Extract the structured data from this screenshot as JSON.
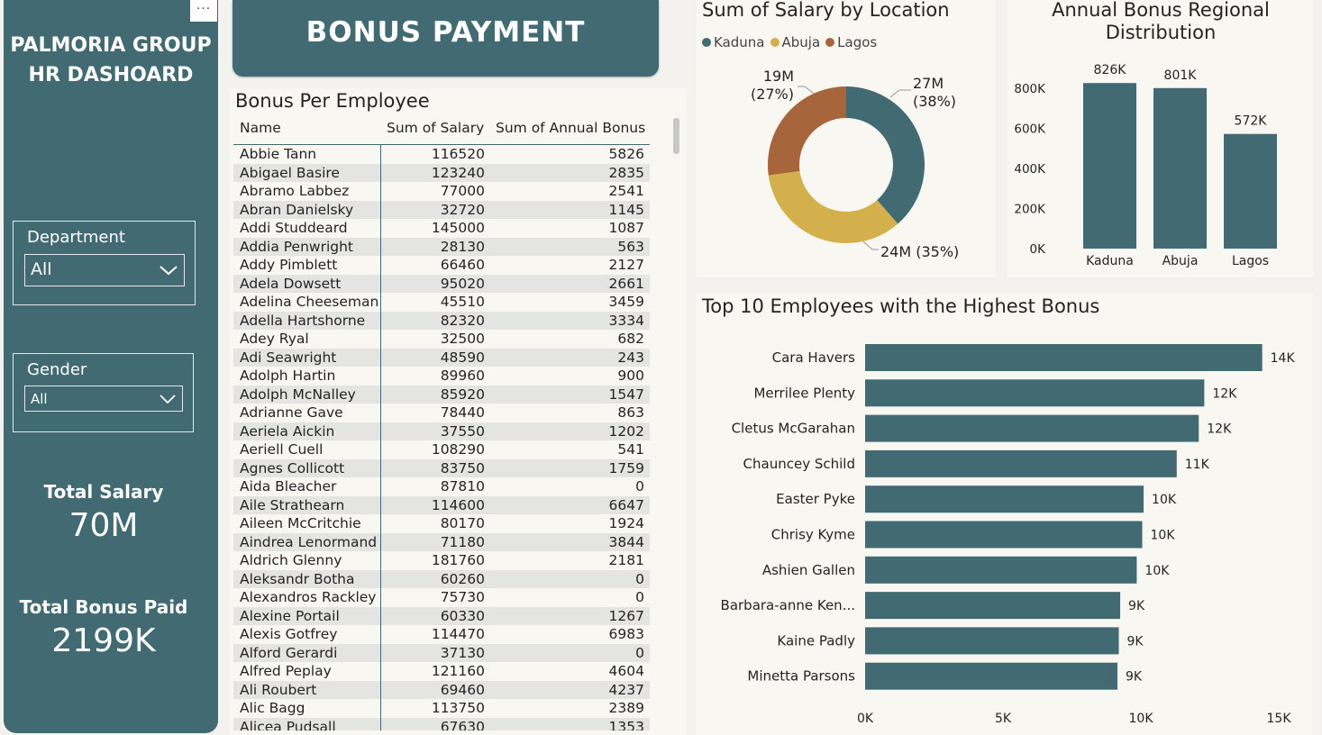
{
  "sidebar": {
    "brand_line1": "PALMORIA GROUP",
    "brand_line2": "HR DASHOARD",
    "department": {
      "label": "Department",
      "selected": "All"
    },
    "gender": {
      "label": "Gender",
      "selected": "All"
    },
    "total_salary": {
      "label": "Total Salary",
      "value": "70M"
    },
    "total_bonus": {
      "label": "Total Bonus Paid",
      "value": "2199K"
    },
    "more_options": "···"
  },
  "banner": {
    "title": "BONUS PAYMENT"
  },
  "table": {
    "title": "Bonus Per Employee",
    "columns": [
      "Name",
      "Sum of Salary",
      "Sum of Annual Bonus"
    ],
    "rows": [
      [
        "Abbie Tann",
        "116520",
        "5826"
      ],
      [
        "Abigael Basire",
        "123240",
        "2835"
      ],
      [
        "Abramo Labbez",
        "77000",
        "2541"
      ],
      [
        "Abran Danielsky",
        "32720",
        "1145"
      ],
      [
        "Addi Studdeard",
        "145000",
        "1087"
      ],
      [
        "Addia Penwright",
        "28130",
        "563"
      ],
      [
        "Addy Pimblett",
        "66460",
        "2127"
      ],
      [
        "Adela Dowsett",
        "95020",
        "2661"
      ],
      [
        "Adelina Cheeseman",
        "45510",
        "3459"
      ],
      [
        "Adella Hartshorne",
        "82320",
        "3334"
      ],
      [
        "Adey Ryal",
        "32500",
        "682"
      ],
      [
        "Adi Seawright",
        "48590",
        "243"
      ],
      [
        "Adolph Hartin",
        "89960",
        "900"
      ],
      [
        "Adolph McNalley",
        "85920",
        "1547"
      ],
      [
        "Adrianne Gave",
        "78440",
        "863"
      ],
      [
        "Aeriela Aickin",
        "37550",
        "1202"
      ],
      [
        "Aeriell Cuell",
        "108290",
        "541"
      ],
      [
        "Agnes Collicott",
        "83750",
        "1759"
      ],
      [
        "Aida Bleacher",
        "87810",
        "0"
      ],
      [
        "Aile Strathearn",
        "114600",
        "6647"
      ],
      [
        "Aileen McCritchie",
        "80170",
        "1924"
      ],
      [
        "Aindrea Lenormand",
        "71180",
        "3844"
      ],
      [
        "Aldrich Glenny",
        "181760",
        "2181"
      ],
      [
        "Aleksandr Botha",
        "60260",
        "0"
      ],
      [
        "Alexandros Rackley",
        "75730",
        "0"
      ],
      [
        "Alexine Portail",
        "60330",
        "1267"
      ],
      [
        "Alexis Gotfrey",
        "114470",
        "6983"
      ],
      [
        "Alford Gerardi",
        "37130",
        "0"
      ],
      [
        "Alfred Peplay",
        "121160",
        "4604"
      ],
      [
        "Ali Roubert",
        "69460",
        "4237"
      ],
      [
        "Alic Bagg",
        "113750",
        "2389"
      ],
      [
        "Alicea Pudsall",
        "67630",
        "1353"
      ]
    ]
  },
  "chart_data": [
    {
      "type": "pie",
      "title": "Sum of Salary by Location",
      "legend_position": "top-left",
      "slices": [
        {
          "name": "Kaduna",
          "value": 27,
          "label": "27M",
          "pct_label": "(38%)",
          "color": "#426a73"
        },
        {
          "name": "Abuja",
          "value": 24,
          "label": "24M (35%)",
          "color": "#d4b04c"
        },
        {
          "name": "Lagos",
          "value": 19,
          "label": "19M",
          "pct_label": "(27%)",
          "color": "#a6653a"
        }
      ]
    },
    {
      "type": "bar",
      "title_line1": "Annual Bonus Regional",
      "title_line2": "Distribution",
      "categories": [
        "Kaduna",
        "Abuja",
        "Lagos"
      ],
      "values": [
        826,
        801,
        572
      ],
      "data_labels": [
        "826K",
        "801K",
        "572K"
      ],
      "y_ticks": [
        0,
        200,
        400,
        600,
        800
      ],
      "y_tick_labels": [
        "0K",
        "200K",
        "400K",
        "600K",
        "800K"
      ],
      "ylim": [
        0,
        900
      ],
      "color": "#426a73"
    },
    {
      "type": "bar",
      "orientation": "horizontal",
      "title": "Top 10 Employees with the Highest Bonus",
      "categories": [
        "Cara Havers",
        "Merrilee Plenty",
        "Cletus McGarahan",
        "Chauncey Schild",
        "Easter Pyke",
        "Chrisy Kyme",
        "Ashien Gallen",
        "Barbara-anne Ken...",
        "Kaine Padly",
        "Minetta Parsons"
      ],
      "values": [
        14400,
        12300,
        12100,
        11300,
        10100,
        10050,
        9850,
        9250,
        9200,
        9150
      ],
      "data_labels": [
        "14K",
        "12K",
        "12K",
        "11K",
        "10K",
        "10K",
        "10K",
        "9K",
        "9K",
        "9K"
      ],
      "x_ticks": [
        0,
        5000,
        10000,
        15000
      ],
      "x_tick_labels": [
        "0K",
        "5K",
        "10K",
        "15K"
      ],
      "xlim": [
        0,
        15000
      ],
      "color": "#426a73"
    }
  ]
}
